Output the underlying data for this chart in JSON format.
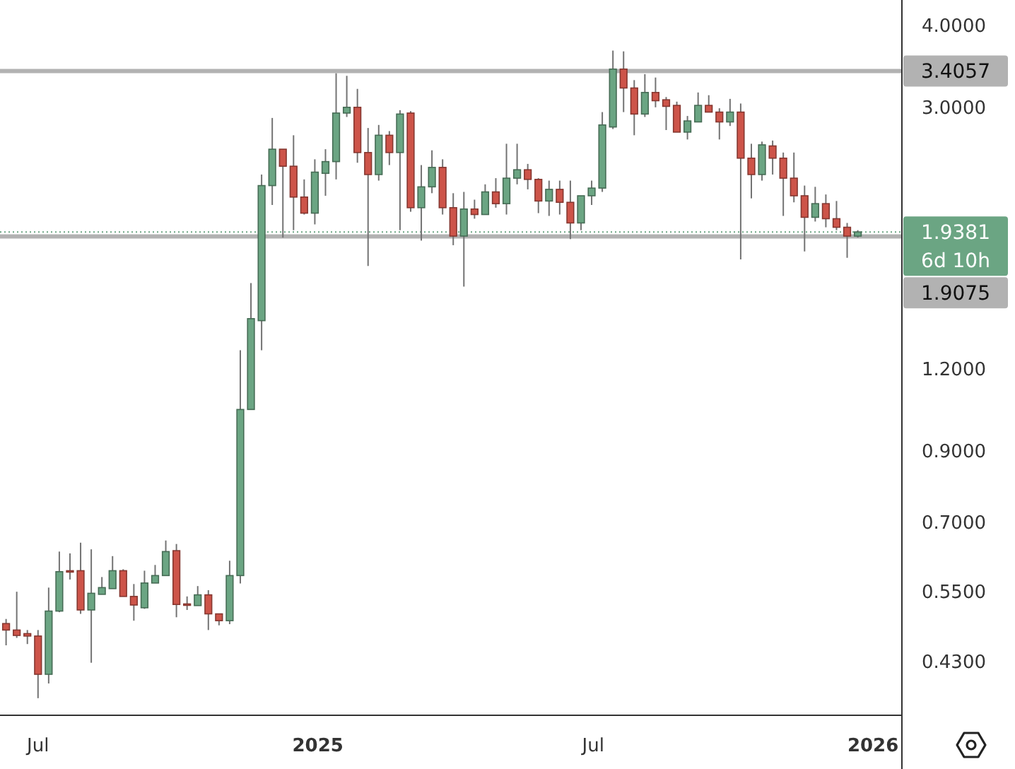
{
  "chart_data": {
    "type": "candlestick",
    "log": true,
    "xlim": [
      "2024-06-06",
      "2026-01-20"
    ],
    "xticks": [
      {
        "value": "2024-07-01",
        "label": "Jul"
      },
      {
        "value": "2025-01-01",
        "label": "2025"
      },
      {
        "value": "2025-07-01",
        "label": "Jul"
      },
      {
        "value": "2026-01-01",
        "label": "2026"
      }
    ],
    "ylim": [
      0.356,
      4.37
    ],
    "yticks": [
      {
        "value": 0.43,
        "label": "0.4300"
      },
      {
        "value": 0.55,
        "label": "0.5500"
      },
      {
        "value": 0.7,
        "label": "0.7000"
      },
      {
        "value": 0.9,
        "label": "0.9000"
      },
      {
        "value": 1.2,
        "label": "1.2000"
      },
      {
        "value": 3,
        "label": "3.0000"
      },
      {
        "value": 4,
        "label": "4.0000"
      }
    ],
    "x": [
      "2024-06-10",
      "2024-06-17",
      "2024-06-24",
      "2024-07-01",
      "2024-07-08",
      "2024-07-15",
      "2024-07-22",
      "2024-07-29",
      "2024-08-05",
      "2024-08-12",
      "2024-08-19",
      "2024-08-26",
      "2024-09-02",
      "2024-09-09",
      "2024-09-16",
      "2024-09-23",
      "2024-09-30",
      "2024-10-07",
      "2024-10-14",
      "2024-10-21",
      "2024-10-28",
      "2024-11-04",
      "2024-11-11",
      "2024-11-18",
      "2024-11-25",
      "2024-12-02",
      "2024-12-09",
      "2024-12-16",
      "2024-12-23",
      "2024-12-30",
      "2025-01-06",
      "2025-01-13",
      "2025-01-20",
      "2025-01-27",
      "2025-02-03",
      "2025-02-10",
      "2025-02-17",
      "2025-02-24",
      "2025-03-03",
      "2025-03-10",
      "2025-03-17",
      "2025-03-24",
      "2025-03-31",
      "2025-04-07",
      "2025-04-14",
      "2025-04-21",
      "2025-04-28",
      "2025-05-05",
      "2025-05-12",
      "2025-05-19",
      "2025-05-26",
      "2025-06-02",
      "2025-06-09",
      "2025-06-16",
      "2025-06-23",
      "2025-06-30",
      "2025-07-07",
      "2025-07-14",
      "2025-07-21",
      "2025-07-28",
      "2025-08-04",
      "2025-08-11",
      "2025-08-18",
      "2025-08-25",
      "2025-09-01",
      "2025-09-08",
      "2025-09-15",
      "2025-09-22",
      "2025-09-29",
      "2025-10-06",
      "2025-10-13",
      "2025-10-20",
      "2025-10-27",
      "2025-11-03",
      "2025-11-10",
      "2025-11-17",
      "2025-11-24",
      "2025-12-01",
      "2025-12-08",
      "2025-12-15",
      "2025-12-22"
    ],
    "ohlc": [
      [
        0.491,
        0.499,
        0.455,
        0.48
      ],
      [
        0.48,
        0.549,
        0.467,
        0.471
      ],
      [
        0.474,
        0.48,
        0.457,
        0.47
      ],
      [
        0.47,
        0.48,
        0.378,
        0.411
      ],
      [
        0.411,
        0.557,
        0.398,
        0.513
      ],
      [
        0.513,
        0.632,
        0.511,
        0.589
      ],
      [
        0.591,
        0.628,
        0.573,
        0.59
      ],
      [
        0.591,
        0.652,
        0.508,
        0.515
      ],
      [
        0.515,
        0.637,
        0.428,
        0.546
      ],
      [
        0.544,
        0.578,
        0.544,
        0.557
      ],
      [
        0.555,
        0.622,
        0.555,
        0.591
      ],
      [
        0.591,
        0.594,
        0.54,
        0.54
      ],
      [
        0.54,
        0.564,
        0.496,
        0.524
      ],
      [
        0.519,
        0.591,
        0.517,
        0.566
      ],
      [
        0.566,
        0.603,
        0.566,
        0.581
      ],
      [
        0.581,
        0.657,
        0.581,
        0.632
      ],
      [
        0.634,
        0.649,
        0.502,
        0.525
      ],
      [
        0.526,
        0.54,
        0.515,
        0.525
      ],
      [
        0.523,
        0.56,
        0.523,
        0.543
      ],
      [
        0.543,
        0.552,
        0.48,
        0.508
      ],
      [
        0.508,
        0.508,
        0.488,
        0.496
      ],
      [
        0.496,
        0.612,
        0.49,
        0.581
      ],
      [
        0.581,
        1.28,
        0.565,
        1.04
      ],
      [
        1.04,
        1.62,
        1.04,
        1.43
      ],
      [
        1.42,
        2.37,
        1.28,
        2.28
      ],
      [
        2.28,
        2.89,
        2.13,
        2.59
      ],
      [
        2.59,
        2.59,
        1.9,
        2.44
      ],
      [
        2.44,
        2.72,
        1.95,
        2.19
      ],
      [
        2.19,
        2.33,
        2.06,
        2.07
      ],
      [
        2.07,
        2.5,
        1.99,
        2.39
      ],
      [
        2.38,
        2.59,
        2.2,
        2.48
      ],
      [
        2.48,
        3.38,
        2.33,
        2.94
      ],
      [
        2.94,
        3.35,
        2.9,
        3.0
      ],
      [
        3.0,
        3.2,
        2.47,
        2.56
      ],
      [
        2.56,
        2.79,
        1.72,
        2.37
      ],
      [
        2.37,
        2.82,
        2.32,
        2.72
      ],
      [
        2.72,
        2.76,
        2.45,
        2.56
      ],
      [
        2.56,
        2.97,
        1.95,
        2.93
      ],
      [
        2.94,
        2.96,
        2.08,
        2.11
      ],
      [
        2.11,
        2.45,
        1.88,
        2.27
      ],
      [
        2.27,
        2.58,
        2.22,
        2.43
      ],
      [
        2.43,
        2.5,
        2.06,
        2.11
      ],
      [
        2.11,
        2.22,
        1.85,
        1.91
      ],
      [
        1.91,
        2.23,
        1.6,
        2.1
      ],
      [
        2.1,
        2.17,
        2.03,
        2.06
      ],
      [
        2.06,
        2.29,
        2.06,
        2.23
      ],
      [
        2.23,
        2.34,
        2.11,
        2.14
      ],
      [
        2.14,
        2.64,
        2.06,
        2.34
      ],
      [
        2.34,
        2.64,
        2.29,
        2.41
      ],
      [
        2.41,
        2.46,
        2.25,
        2.33
      ],
      [
        2.33,
        2.34,
        2.07,
        2.16
      ],
      [
        2.16,
        2.32,
        2.05,
        2.25
      ],
      [
        2.25,
        2.32,
        2.06,
        2.15
      ],
      [
        2.15,
        2.32,
        1.89,
        2.0
      ],
      [
        2.0,
        2.2,
        1.95,
        2.2
      ],
      [
        2.2,
        2.32,
        2.13,
        2.26
      ],
      [
        2.26,
        2.95,
        2.23,
        2.82
      ],
      [
        2.8,
        3.66,
        2.78,
        3.43
      ],
      [
        3.43,
        3.65,
        2.95,
        3.21
      ],
      [
        3.21,
        3.3,
        2.72,
        2.93
      ],
      [
        2.93,
        3.37,
        2.9,
        3.16
      ],
      [
        3.16,
        3.33,
        3.0,
        3.07
      ],
      [
        3.08,
        3.11,
        2.77,
        3.01
      ],
      [
        3.02,
        3.06,
        2.75,
        2.75
      ],
      [
        2.75,
        2.91,
        2.68,
        2.86
      ],
      [
        2.85,
        3.16,
        2.85,
        3.02
      ],
      [
        3.02,
        3.13,
        2.95,
        2.95
      ],
      [
        2.95,
        2.99,
        2.68,
        2.85
      ],
      [
        2.85,
        3.09,
        2.81,
        2.95
      ],
      [
        2.95,
        3.04,
        1.76,
        2.51
      ],
      [
        2.51,
        2.64,
        2.18,
        2.37
      ],
      [
        2.37,
        2.66,
        2.32,
        2.63
      ],
      [
        2.62,
        2.67,
        2.37,
        2.51
      ],
      [
        2.51,
        2.56,
        2.05,
        2.34
      ],
      [
        2.34,
        2.56,
        2.15,
        2.2
      ],
      [
        2.2,
        2.28,
        1.81,
        2.04
      ],
      [
        2.04,
        2.27,
        2.01,
        2.14
      ],
      [
        2.14,
        2.21,
        1.97,
        2.03
      ],
      [
        2.03,
        2.16,
        1.95,
        1.97
      ],
      [
        1.97,
        2.0,
        1.77,
        1.91
      ],
      [
        1.91,
        1.95,
        1.9,
        1.9381
      ]
    ],
    "colors": [
      "#cd5449",
      "#cd5449",
      "#cd5449",
      "#cd5449",
      "#6ba583",
      "#6ba583",
      "#cd5449",
      "#cd5449",
      "#6ba583",
      "#6ba583",
      "#6ba583",
      "#cd5449",
      "#cd5449",
      "#6ba583",
      "#6ba583",
      "#6ba583",
      "#cd5449",
      "#cd5449",
      "#6ba583",
      "#cd5449",
      "#cd5449",
      "#6ba583",
      "#6ba583",
      "#6ba583",
      "#6ba583",
      "#6ba583",
      "#cd5449",
      "#cd5449",
      "#cd5449",
      "#6ba583",
      "#6ba583",
      "#6ba583",
      "#6ba583",
      "#cd5449",
      "#cd5449",
      "#6ba583",
      "#cd5449",
      "#6ba583",
      "#cd5449",
      "#6ba583",
      "#6ba583",
      "#cd5449",
      "#cd5449",
      "#6ba583",
      "#cd5449",
      "#6ba583",
      "#cd5449",
      "#6ba583",
      "#6ba583",
      "#cd5449",
      "#cd5449",
      "#6ba583",
      "#cd5449",
      "#cd5449",
      "#6ba583",
      "#6ba583",
      "#6ba583",
      "#6ba583",
      "#cd5449",
      "#cd5449",
      "#6ba583",
      "#cd5449",
      "#cd5449",
      "#cd5449",
      "#6ba583",
      "#6ba583",
      "#cd5449",
      "#cd5449",
      "#6ba583",
      "#cd5449",
      "#cd5449",
      "#6ba583",
      "#cd5449",
      "#cd5449",
      "#cd5449",
      "#cd5449",
      "#6ba583",
      "#cd5449",
      "#cd5449",
      "#cd5449",
      "#6ba583"
    ],
    "ref_lines": [
      {
        "axis": "y",
        "value": 3.4057,
        "label": "3.4057",
        "color": "#b2b2b2"
      },
      {
        "axis": "y",
        "value": 1.9381,
        "label": "1.9381",
        "color": "#6ba583",
        "line_style": "dotted"
      },
      {
        "axis": "y",
        "value": 1.9075,
        "label": "1.9075",
        "color": "#b2b2b2"
      }
    ],
    "annotations": [
      "6d 10h"
    ]
  }
}
